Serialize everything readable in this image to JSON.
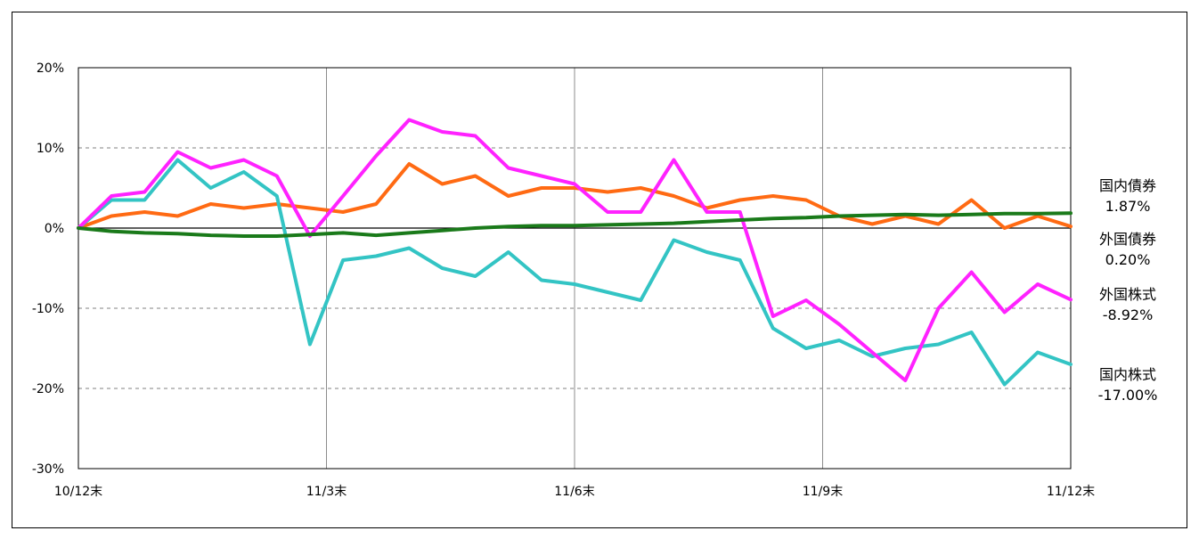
{
  "chart_data": {
    "type": "line",
    "title": "",
    "xlabel": "",
    "ylabel": "",
    "x_ticks": [
      "10/12末",
      "11/3末",
      "11/6末",
      "11/9末",
      "11/12末"
    ],
    "y_ticks": [
      "20%",
      "10%",
      "0%",
      "-10%",
      "-20%",
      "-30%"
    ],
    "ylim": [
      -30,
      20
    ],
    "y_unit": "%",
    "grid": "horizontal dashed, vertical solid",
    "legend_placement": "right",
    "series": [
      {
        "name": "国内債券",
        "end_label": "1.87%",
        "color": "#1a7a1a",
        "values": [
          0,
          -0.4,
          -0.6,
          -0.7,
          -0.9,
          -1.0,
          -1.0,
          -0.8,
          -0.6,
          -0.9,
          -0.6,
          -0.3,
          0.0,
          0.2,
          0.3,
          0.3,
          0.4,
          0.5,
          0.6,
          0.8,
          1.0,
          1.2,
          1.3,
          1.5,
          1.6,
          1.7,
          1.6,
          1.7,
          1.8,
          1.8,
          1.87
        ]
      },
      {
        "name": "外国債券",
        "end_label": "0.20%",
        "color": "#ff6a13",
        "values": [
          0,
          1.5,
          2.0,
          1.5,
          3.0,
          2.5,
          3.0,
          2.5,
          2.0,
          3.0,
          8.0,
          5.5,
          6.5,
          4.0,
          5.0,
          5.0,
          4.5,
          5.0,
          4.0,
          2.5,
          3.5,
          4.0,
          3.5,
          1.5,
          0.5,
          1.5,
          0.5,
          3.5,
          0.0,
          1.5,
          0.2
        ]
      },
      {
        "name": "外国株式",
        "end_label": "-8.92%",
        "color": "#ff22ff",
        "values": [
          0,
          4.0,
          4.5,
          9.5,
          7.5,
          8.5,
          6.5,
          -1.0,
          4.0,
          9.0,
          13.5,
          12.0,
          11.5,
          7.5,
          6.5,
          5.5,
          2.0,
          2.0,
          8.5,
          2.0,
          2.0,
          -11.0,
          -9.0,
          -12.0,
          -15.5,
          -19.0,
          -10.0,
          -5.5,
          -10.5,
          -7.0,
          -8.92
        ]
      },
      {
        "name": "国内株式",
        "end_label": "-17.00%",
        "color": "#33c4c4",
        "values": [
          0,
          3.5,
          3.5,
          8.5,
          5.0,
          7.0,
          4.0,
          -14.5,
          -4.0,
          -3.5,
          -2.5,
          -5.0,
          -6.0,
          -3.0,
          -6.5,
          -7.0,
          -8.0,
          -9.0,
          -1.5,
          -3.0,
          -4.0,
          -12.5,
          -15.0,
          -14.0,
          -16.0,
          -15.0,
          -14.5,
          -13.0,
          -19.5,
          -15.5,
          -17.0
        ]
      }
    ]
  }
}
